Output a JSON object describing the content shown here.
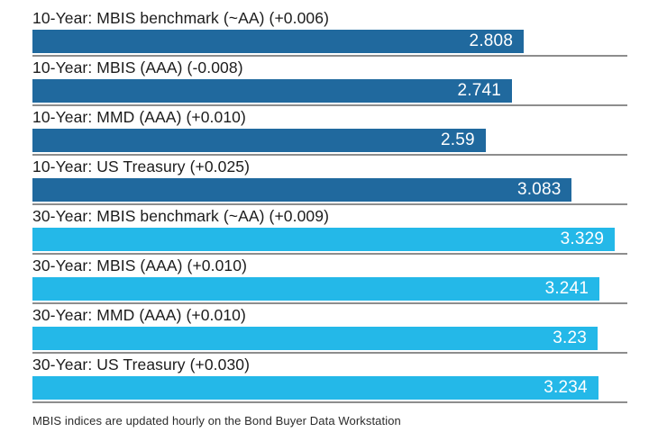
{
  "chart_data": {
    "type": "bar",
    "orientation": "horizontal",
    "title": "",
    "xlabel": "",
    "ylabel": "",
    "xlim": [
      0,
      3.4
    ],
    "grid": false,
    "legend_position": "none",
    "categories": [
      "10-Year: MBIS benchmark (~AA) (+0.006)",
      "10-Year: MBIS (AAA) (-0.008)",
      "10-Year: MMD (AAA) (+0.010)",
      "10-Year: US Treasury (+0.025)",
      "30-Year: MBIS benchmark (~AA) (+0.009)",
      "30-Year: MBIS (AAA) (+0.010)",
      "30-Year: MMD (AAA) (+0.010)",
      "30-Year: US Treasury (+0.030)"
    ],
    "values": [
      2.808,
      2.741,
      2.59,
      3.083,
      3.329,
      3.241,
      3.23,
      3.234
    ],
    "value_labels": [
      "2.808",
      "2.741",
      "2.59",
      "3.083",
      "3.329",
      "3.241",
      "3.23",
      "3.234"
    ],
    "groups": [
      "10-year",
      "10-year",
      "10-year",
      "10-year",
      "30-year",
      "30-year",
      "30-year",
      "30-year"
    ],
    "footnote": "MBIS indices are updated hourly on the Bond Buyer Data Workstation"
  },
  "colors": {
    "bar_10_year": "#20699e",
    "bar_30_year": "#24b8e8",
    "separator": "#8d8d8d",
    "label_text": "#1c1c1c",
    "value_text": "#ffffff",
    "footnote_text": "#2b2b2b",
    "background": "#ffffff"
  }
}
